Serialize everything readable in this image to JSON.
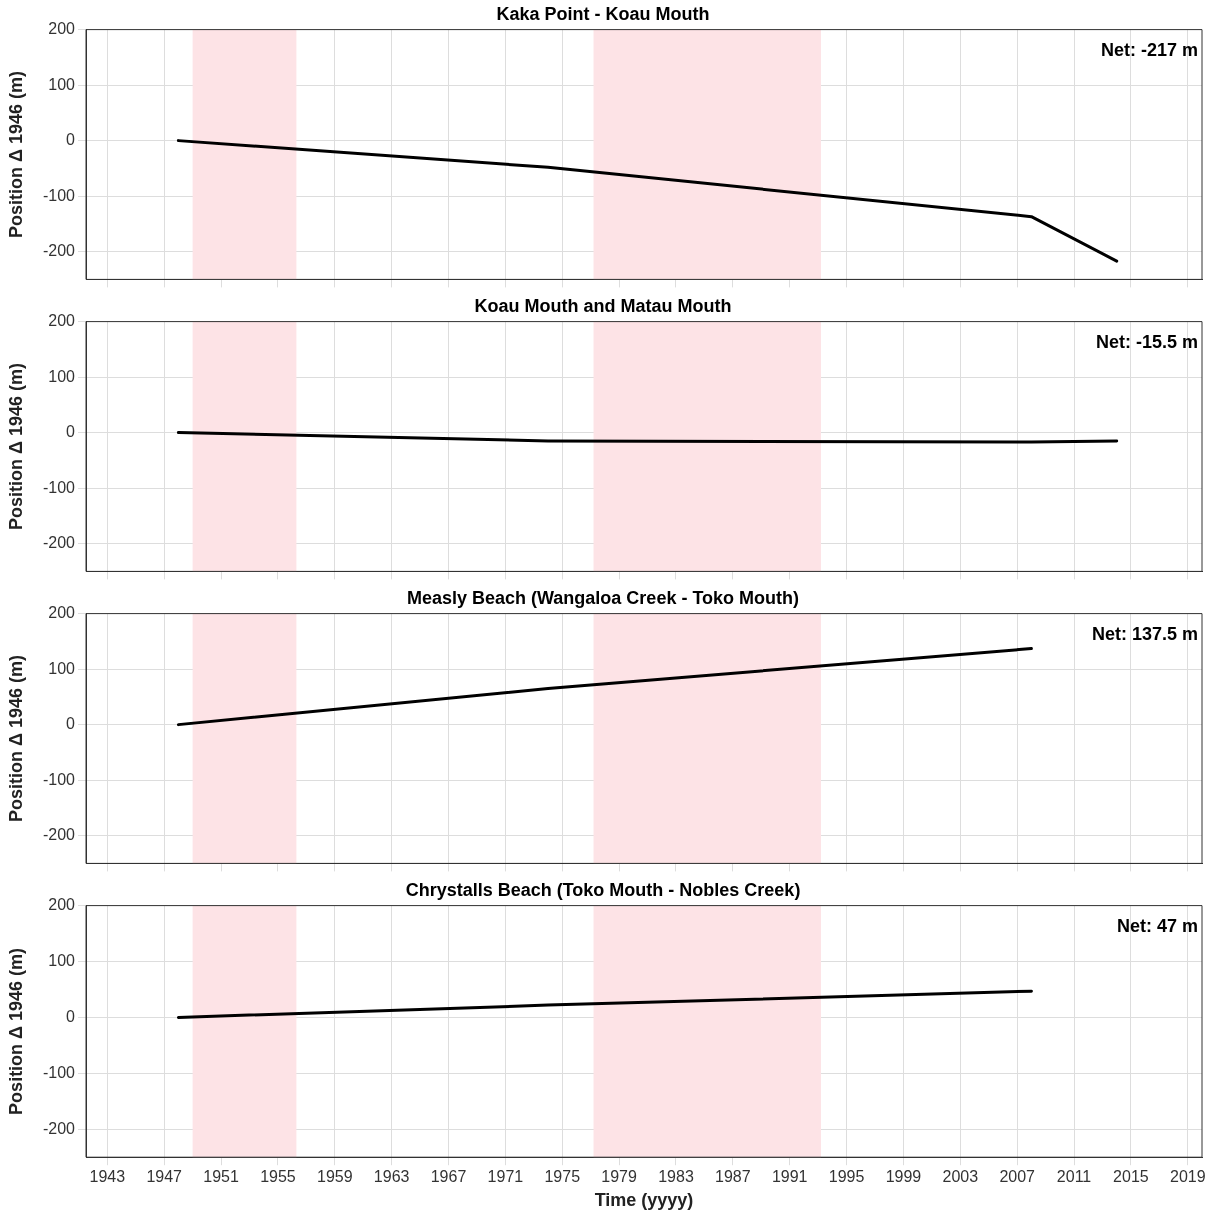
{
  "chart_data": [
    {
      "type": "line",
      "title": "Kaka Point - Koau Mouth",
      "ylabel": "Position Δ 1946 (m)",
      "annotations": [
        "Net: -217 m"
      ],
      "series": [
        {
          "color": "#000000",
          "x": [
            1948,
            1974,
            2008,
            2014
          ],
          "values": [
            0,
            -48,
            -137,
            -217
          ]
        }
      ],
      "xlim": [
        1941.5,
        2020
      ],
      "xticks": [
        1943,
        1947,
        1951,
        1955,
        1959,
        1963,
        1967,
        1971,
        1975,
        1979,
        1983,
        1987,
        1991,
        1995,
        1999,
        2003,
        2007,
        2011,
        2015,
        2019
      ],
      "ylim": [
        -250,
        200
      ],
      "yticks": [
        -200,
        -100,
        0,
        100,
        200
      ],
      "bands": [
        {
          "axis": "x",
          "from": 1949,
          "to": 1956.3,
          "color": "#fde3e6"
        },
        {
          "axis": "x",
          "from": 1977.2,
          "to": 1993.2,
          "color": "#fde3e6"
        }
      ],
      "grid": true,
      "legend": false,
      "marker": "none",
      "line_style": "solid",
      "tick_labels": "y"
    },
    {
      "type": "line",
      "title": "Koau Mouth and Matau Mouth",
      "ylabel": "Position Δ 1946 (m)",
      "annotations": [
        "Net: -15.5 m"
      ],
      "series": [
        {
          "color": "#000000",
          "x": [
            1948,
            1974,
            2008,
            2014
          ],
          "values": [
            0,
            -15,
            -17,
            -15
          ]
        }
      ],
      "xlim": [
        1941.5,
        2020
      ],
      "xticks": [
        1943,
        1947,
        1951,
        1955,
        1959,
        1963,
        1967,
        1971,
        1975,
        1979,
        1983,
        1987,
        1991,
        1995,
        1999,
        2003,
        2007,
        2011,
        2015,
        2019
      ],
      "ylim": [
        -250,
        200
      ],
      "yticks": [
        -200,
        -100,
        0,
        100,
        200
      ],
      "bands": [
        {
          "axis": "x",
          "from": 1949,
          "to": 1956.3,
          "color": "#fde3e6"
        },
        {
          "axis": "x",
          "from": 1977.2,
          "to": 1993.2,
          "color": "#fde3e6"
        }
      ],
      "grid": true,
      "legend": false,
      "marker": "none",
      "line_style": "solid",
      "tick_labels": "y"
    },
    {
      "type": "line",
      "title": "Measly Beach (Wangaloa Creek - Toko Mouth)",
      "ylabel": "Position Δ 1946 (m)",
      "annotations": [
        "Net: 137.5 m"
      ],
      "series": [
        {
          "color": "#000000",
          "x": [
            1948,
            1974,
            2008
          ],
          "values": [
            0,
            65,
            137
          ]
        }
      ],
      "xlim": [
        1941.5,
        2020
      ],
      "xticks": [
        1943,
        1947,
        1951,
        1955,
        1959,
        1963,
        1967,
        1971,
        1975,
        1979,
        1983,
        1987,
        1991,
        1995,
        1999,
        2003,
        2007,
        2011,
        2015,
        2019
      ],
      "ylim": [
        -250,
        200
      ],
      "yticks": [
        -200,
        -100,
        0,
        100,
        200
      ],
      "bands": [
        {
          "axis": "x",
          "from": 1949,
          "to": 1956.3,
          "color": "#fde3e6"
        },
        {
          "axis": "x",
          "from": 1977.2,
          "to": 1993.2,
          "color": "#fde3e6"
        }
      ],
      "grid": true,
      "legend": false,
      "marker": "none",
      "line_style": "solid",
      "tick_labels": "y"
    },
    {
      "type": "line",
      "title": "Chrystalls Beach (Toko Mouth - Nobles Creek)",
      "xlabel": "Time (yyyy)",
      "ylabel": "Position Δ 1946 (m)",
      "annotations": [
        "Net: 47 m"
      ],
      "series": [
        {
          "color": "#000000",
          "x": [
            1948,
            1974,
            2008
          ],
          "values": [
            0,
            22,
            47
          ]
        }
      ],
      "xlim": [
        1941.5,
        2020
      ],
      "xticks": [
        1943,
        1947,
        1951,
        1955,
        1959,
        1963,
        1967,
        1971,
        1975,
        1979,
        1983,
        1987,
        1991,
        1995,
        1999,
        2003,
        2007,
        2011,
        2015,
        2019
      ],
      "ylim": [
        -250,
        200
      ],
      "yticks": [
        -200,
        -100,
        0,
        100,
        200
      ],
      "bands": [
        {
          "axis": "x",
          "from": 1949,
          "to": 1956.3,
          "color": "#fde3e6"
        },
        {
          "axis": "x",
          "from": 1977.2,
          "to": 1993.2,
          "color": "#fde3e6"
        }
      ],
      "grid": true,
      "legend": false,
      "marker": "none",
      "line_style": "solid"
    }
  ]
}
